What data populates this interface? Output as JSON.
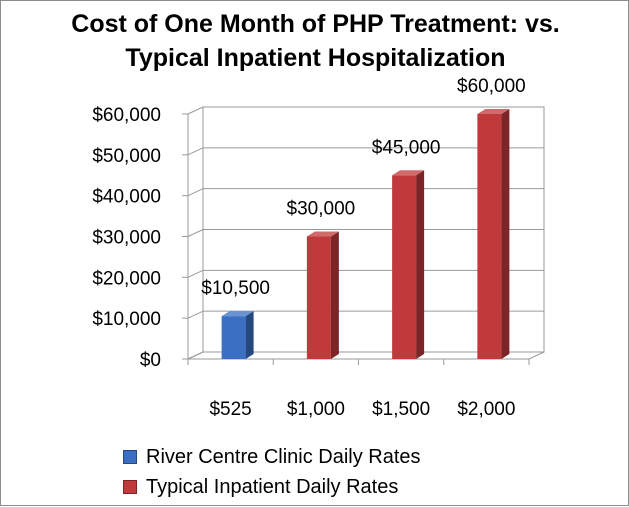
{
  "chart_data": {
    "type": "bar",
    "title_lines": [
      "Cost of One Month of PHP Treatment: vs.",
      "Typical  Inpatient Hospitalization"
    ],
    "categories": [
      "$525",
      "$1,000",
      "$1,500",
      "$2,000"
    ],
    "series": [
      {
        "name": "River Centre Clinic Daily Rates",
        "color": "#3a6fc4",
        "values": [
          10500,
          null,
          null,
          null
        ],
        "labels": [
          "$10,500",
          null,
          null,
          null
        ]
      },
      {
        "name": "Typical Inpatient Daily Rates",
        "color": "#c0393b",
        "values": [
          null,
          30000,
          45000,
          60000
        ],
        "labels": [
          null,
          "$30,000",
          "$45,000",
          "$60,000"
        ]
      }
    ],
    "y_ticks": [
      {
        "value": 0,
        "label": "$0"
      },
      {
        "value": 10000,
        "label": "$10,000"
      },
      {
        "value": 20000,
        "label": "$20,000"
      },
      {
        "value": 30000,
        "label": "$30,000"
      },
      {
        "value": 40000,
        "label": "$40,000"
      },
      {
        "value": 50000,
        "label": "$50,000"
      },
      {
        "value": 60000,
        "label": "$60,000"
      }
    ],
    "ylim": [
      0,
      60000
    ],
    "grid": true,
    "style": "3d",
    "legend_position": "bottom-left"
  }
}
